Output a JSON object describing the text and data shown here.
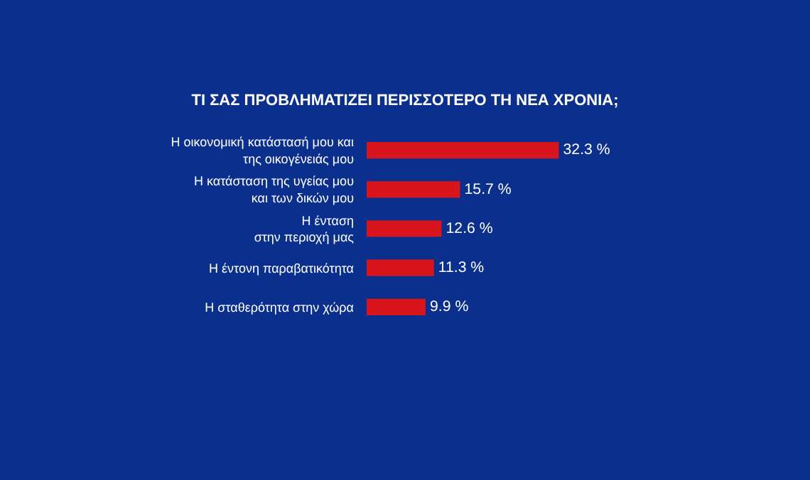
{
  "chart_data": {
    "type": "bar",
    "orientation": "horizontal",
    "title": "ΤΙ ΣΑΣ ΠΡΟΒΛΗΜΑΤΙΖΕΙ ΠΕΡΙΣΣΟΤΕΡΟ ΤΗ ΝΕΑ ΧΡΟΝΙΑ;",
    "categories": [
      "Η οικονομική κατάστασή μου και\nτης οικογένειάς μου",
      "Η κατάσταση της υγείας μου\nκαι των δικών μου",
      "Η ένταση\nστην περιοχή μας",
      "Η έντονη παραβατικότητα",
      "Η σταθερότητα στην χώρα"
    ],
    "values": [
      32.3,
      15.7,
      12.6,
      11.3,
      9.9
    ],
    "value_labels": [
      "32.3 %",
      "15.7 %",
      "12.6 %",
      "11.3 %",
      "9.9 %"
    ],
    "color": "#d8141c",
    "legend": false
  }
}
